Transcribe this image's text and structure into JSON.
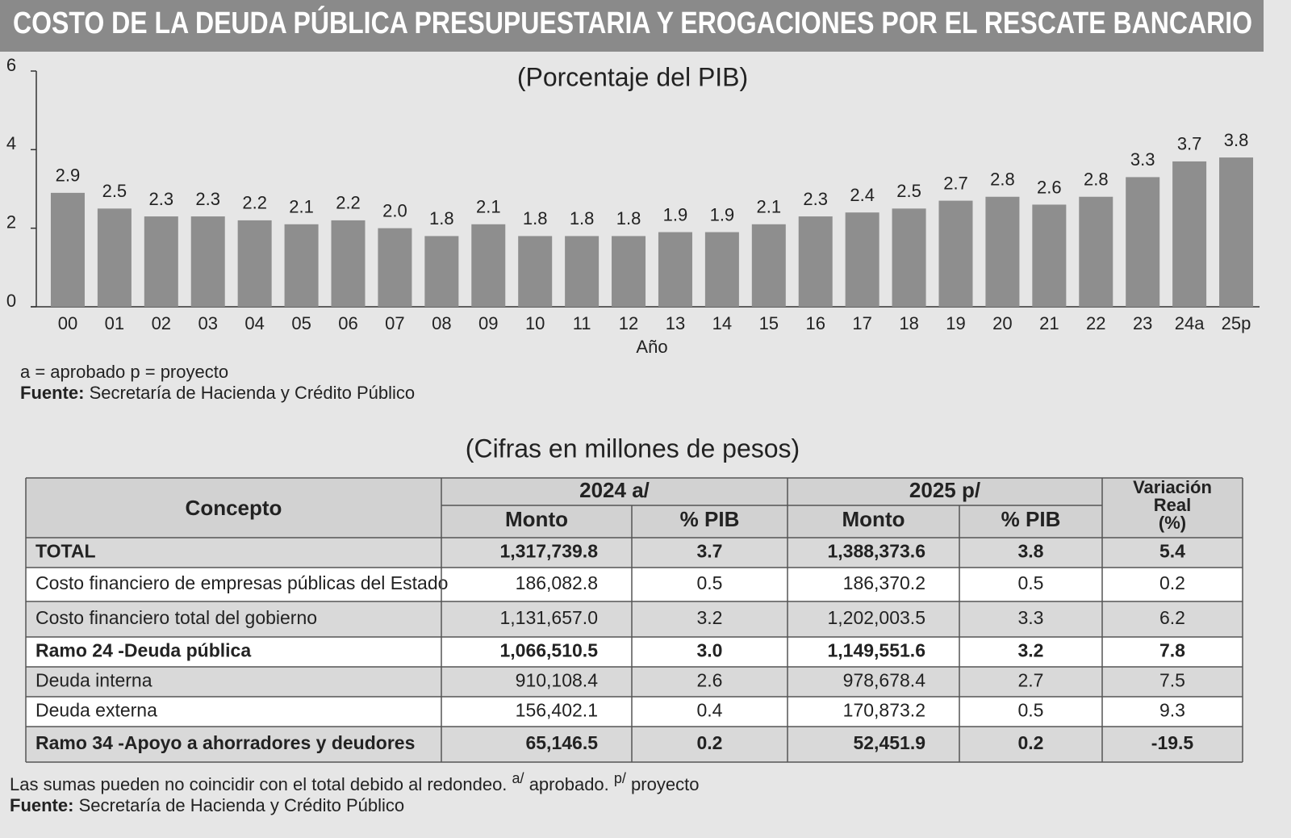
{
  "title": "COSTO DE LA DEUDA PÚBLICA PRESUPUESTARIA Y EROGACIONES POR EL RESCATE BANCARIO",
  "chart_data": {
    "type": "bar",
    "subtitle": "(Porcentaje del PIB)",
    "x_label": "Año",
    "categories": [
      "00",
      "01",
      "02",
      "03",
      "04",
      "05",
      "06",
      "07",
      "08",
      "09",
      "10",
      "11",
      "12",
      "13",
      "14",
      "15",
      "16",
      "17",
      "18",
      "19",
      "20",
      "21",
      "22",
      "23",
      "24a",
      "25p"
    ],
    "values": [
      2.9,
      2.5,
      2.3,
      2.3,
      2.2,
      2.1,
      2.2,
      2.0,
      1.8,
      2.1,
      1.8,
      1.8,
      1.8,
      1.9,
      1.9,
      2.1,
      2.3,
      2.4,
      2.5,
      2.7,
      2.8,
      2.6,
      2.8,
      3.3,
      3.7,
      3.8
    ],
    "value_labels": [
      "2.9",
      "2.5",
      "2.3",
      "2.3",
      "2.2",
      "2.1",
      "2.2",
      "2.0",
      "1.8",
      "2.1",
      "1.8",
      "1.8",
      "1.8",
      "1.9",
      "1.9",
      "2.1",
      "2.3",
      "2.4",
      "2.5",
      "2.7",
      "2.8",
      "2.6",
      "2.8",
      "3.3",
      "3.7",
      "3.8"
    ],
    "color": "#8e8e8e",
    "ylim": [
      0,
      6
    ],
    "yticks": [
      0,
      2,
      4,
      6
    ]
  },
  "chart_notes": {
    "legend": "a = aprobado  p = proyecto",
    "source_label": "Fuente:",
    "source": "Secretaría de Hacienda y Crédito Público"
  },
  "table": {
    "title": "(Cifras en millones de pesos)",
    "header": {
      "concept": "Concepto",
      "year1": "2024 a/",
      "year2": "2025 p/",
      "amount": "Monto",
      "gdp": "% PIB",
      "variation": [
        "Variación",
        "Real",
        "(%)"
      ]
    },
    "rows": [
      {
        "bold": true,
        "cells": [
          "TOTAL",
          "1,317,739.8",
          "3.7",
          "1,388,373.6",
          "3.8",
          "5.4"
        ]
      },
      {
        "bold": false,
        "cells": [
          "Costo financiero de empresas públicas del Estado",
          "186,082.8",
          "0.5",
          "186,370.2",
          "0.5",
          "0.2"
        ]
      },
      {
        "bold": false,
        "cells": [
          "Costo financiero total del gobierno",
          "1,131,657.0",
          "3.2",
          "1,202,003.5",
          "3.3",
          "6.2"
        ]
      },
      {
        "bold": true,
        "cells": [
          "Ramo 24 -Deuda pública",
          "1,066,510.5",
          "3.0",
          "1,149,551.6",
          "3.2",
          "7.8"
        ]
      },
      {
        "bold": false,
        "cells": [
          "Deuda interna",
          "910,108.4",
          "2.6",
          "978,678.4",
          "2.7",
          "7.5"
        ]
      },
      {
        "bold": false,
        "cells": [
          "Deuda externa",
          "156,402.1",
          "0.4",
          "170,873.2",
          "0.5",
          "9.3"
        ]
      },
      {
        "bold": true,
        "cells": [
          "Ramo 34 -Apoyo a ahorradores y deudores",
          "65,146.5",
          "0.2",
          "52,451.9",
          "0.2",
          "-19.5"
        ]
      }
    ]
  },
  "footnote": {
    "parts": [
      "Las sumas pueden no coincidir con el total debido al redondeo.",
      "a/",
      "aprobado.",
      "p/",
      "proyecto"
    ],
    "source_label": "Fuente:",
    "source": "Secretaría de Hacienda y Crédito Público"
  }
}
